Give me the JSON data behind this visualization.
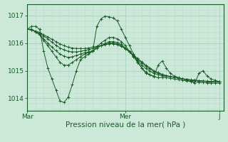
{
  "bg_color": "#cce8d8",
  "grid_color_major": "#aacfbe",
  "grid_color_minor": "#bbdacc",
  "line_color": "#1a5c28",
  "marker_color": "#1a5c28",
  "xlabel": "Pression niveau de la mer( hPa )",
  "xtick_labels": [
    "Mar",
    "Mer",
    "J"
  ],
  "ytick_labels": [
    "1014",
    "1015",
    "1016",
    "1017"
  ],
  "ytick_positions": [
    1014,
    1015,
    1016,
    1017
  ],
  "ylim": [
    1013.55,
    1017.4
  ],
  "xlim": [
    0.0,
    48.0
  ],
  "xtick_positions": [
    0,
    24,
    47
  ],
  "series": [
    [
      1016.5,
      1016.6,
      1016.6,
      1016.5,
      1015.7,
      1015.1,
      1014.7,
      1014.3,
      1013.9,
      1013.85,
      1014.05,
      1014.5,
      1015.0,
      1015.4,
      1015.5,
      1015.6,
      1015.7,
      1016.6,
      1016.87,
      1016.97,
      1016.95,
      1016.9,
      1016.8,
      1016.5,
      1016.2,
      1015.9,
      1015.6,
      1015.3,
      1015.1,
      1014.9,
      1014.85,
      1014.8,
      1015.2,
      1015.35,
      1015.1,
      1014.9,
      1014.8,
      1014.75,
      1014.7,
      1014.65,
      1014.6,
      1014.55,
      1014.9,
      1015.0,
      1014.8,
      1014.7,
      1014.65,
      1014.6
    ],
    [
      1016.5,
      1016.5,
      1016.4,
      1016.3,
      1016.1,
      1015.9,
      1015.7,
      1015.5,
      1015.3,
      1015.2,
      1015.2,
      1015.3,
      1015.4,
      1015.5,
      1015.6,
      1015.65,
      1015.7,
      1015.85,
      1016.0,
      1016.1,
      1016.2,
      1016.2,
      1016.15,
      1016.05,
      1015.9,
      1015.7,
      1015.5,
      1015.3,
      1015.1,
      1014.95,
      1014.85,
      1014.78,
      1014.75,
      1014.75,
      1014.75,
      1014.72,
      1014.7,
      1014.68,
      1014.65,
      1014.63,
      1014.62,
      1014.6,
      1014.58,
      1014.57,
      1014.56,
      1014.55,
      1014.55,
      1014.55
    ],
    [
      1016.5,
      1016.48,
      1016.4,
      1016.3,
      1016.15,
      1016.0,
      1015.85,
      1015.72,
      1015.6,
      1015.52,
      1015.48,
      1015.5,
      1015.55,
      1015.6,
      1015.65,
      1015.68,
      1015.72,
      1015.8,
      1015.9,
      1015.98,
      1016.05,
      1016.05,
      1016.02,
      1015.95,
      1015.82,
      1015.68,
      1015.52,
      1015.35,
      1015.2,
      1015.08,
      1014.98,
      1014.9,
      1014.85,
      1014.82,
      1014.8,
      1014.78,
      1014.75,
      1014.73,
      1014.7,
      1014.68,
      1014.66,
      1014.65,
      1014.63,
      1014.62,
      1014.61,
      1014.6,
      1014.6,
      1014.6
    ],
    [
      1016.5,
      1016.47,
      1016.42,
      1016.35,
      1016.25,
      1016.15,
      1016.03,
      1015.92,
      1015.82,
      1015.75,
      1015.7,
      1015.68,
      1015.68,
      1015.7,
      1015.73,
      1015.76,
      1015.8,
      1015.85,
      1015.9,
      1015.95,
      1016.0,
      1016.0,
      1015.97,
      1015.9,
      1015.8,
      1015.68,
      1015.55,
      1015.4,
      1015.28,
      1015.16,
      1015.06,
      1014.97,
      1014.9,
      1014.85,
      1014.82,
      1014.79,
      1014.76,
      1014.73,
      1014.71,
      1014.69,
      1014.67,
      1014.66,
      1014.64,
      1014.63,
      1014.62,
      1014.61,
      1014.6,
      1014.6
    ],
    [
      1016.5,
      1016.47,
      1016.43,
      1016.38,
      1016.3,
      1016.22,
      1016.13,
      1016.05,
      1015.97,
      1015.9,
      1015.85,
      1015.82,
      1015.8,
      1015.8,
      1015.8,
      1015.82,
      1015.85,
      1015.88,
      1015.91,
      1015.94,
      1015.97,
      1015.97,
      1015.94,
      1015.88,
      1015.79,
      1015.68,
      1015.57,
      1015.44,
      1015.32,
      1015.2,
      1015.1,
      1015.0,
      1014.93,
      1014.87,
      1014.82,
      1014.79,
      1014.76,
      1014.73,
      1014.7,
      1014.68,
      1014.66,
      1014.65,
      1014.63,
      1014.62,
      1014.61,
      1014.6,
      1014.6,
      1014.6
    ]
  ]
}
